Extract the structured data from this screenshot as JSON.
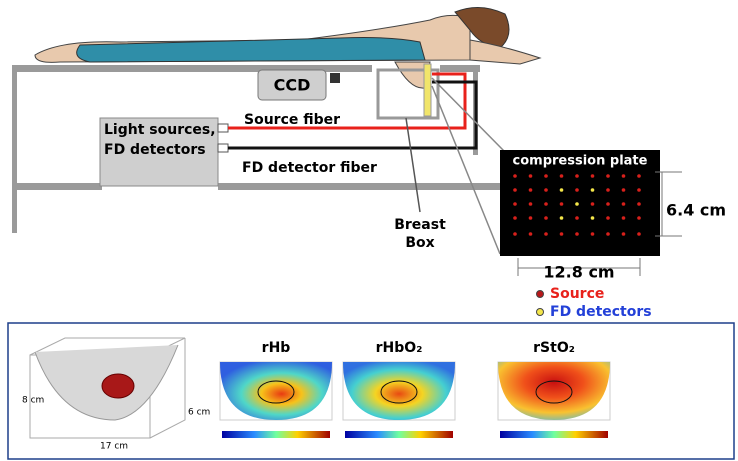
{
  "labels": {
    "ccd": "CCD",
    "light_sources": [
      "Light sources,",
      "FD detectors"
    ],
    "source_fiber": "Source fiber",
    "fd_detector_fiber": "FD detector fiber",
    "breast_box": [
      "Breast",
      "Box"
    ],
    "compression_plate": "compression plate",
    "plate_height": "6.4 cm",
    "plate_width": "12.8 cm"
  },
  "legend": [
    {
      "label": "Source",
      "color": "#e8211b"
    },
    {
      "label": "FD detectors",
      "color": "#2340d8"
    }
  ],
  "reconstruction": {
    "dimensions": {
      "height": "8 cm",
      "depth": "6 cm",
      "length": "17 cm"
    },
    "maps": [
      "rHb",
      "rHbO₂",
      "rStO₂"
    ]
  }
}
